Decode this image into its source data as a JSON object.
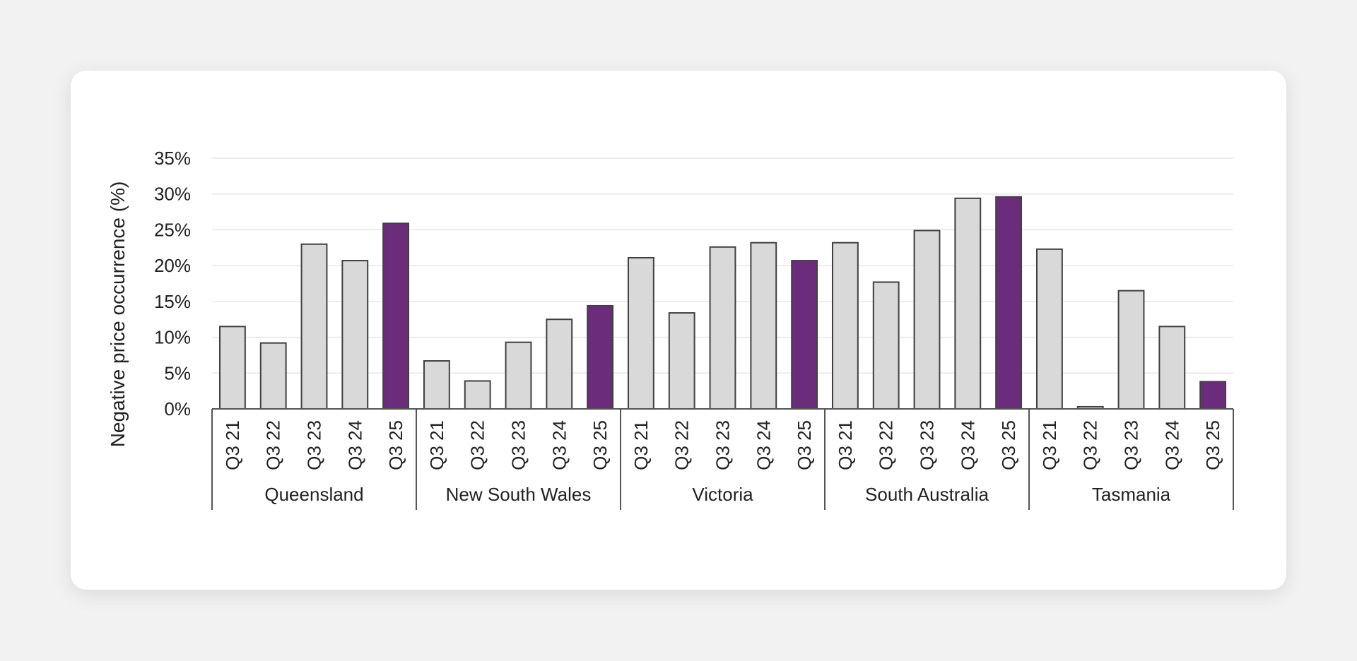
{
  "chart_data": {
    "type": "bar",
    "title": "",
    "ylabel": "Negative price occurrence (%)",
    "xlabel": "",
    "ylim": [
      0,
      35
    ],
    "yticks": [
      0,
      5,
      10,
      15,
      20,
      25,
      30,
      35
    ],
    "ytick_suffix": "%",
    "grid": true,
    "colors": {
      "highlight": "#6b2d7b",
      "default": "#d9d9d9",
      "bar_stroke": "#404040",
      "grid": "#e6e6e6",
      "axis": "#555555"
    },
    "groups": [
      {
        "name": "Queensland",
        "categories": [
          "Q3 21",
          "Q3 22",
          "Q3 23",
          "Q3 24",
          "Q3 25"
        ],
        "values": [
          11.5,
          9.2,
          23.0,
          20.7,
          25.9
        ]
      },
      {
        "name": "New South Wales",
        "categories": [
          "Q3 21",
          "Q3 22",
          "Q3 23",
          "Q3 24",
          "Q3 25"
        ],
        "values": [
          6.7,
          3.9,
          9.3,
          12.5,
          14.4
        ]
      },
      {
        "name": "Victoria",
        "categories": [
          "Q3 21",
          "Q3 22",
          "Q3 23",
          "Q3 24",
          "Q3 25"
        ],
        "values": [
          21.1,
          13.4,
          22.6,
          23.2,
          20.7
        ]
      },
      {
        "name": "South Australia",
        "categories": [
          "Q3 21",
          "Q3 22",
          "Q3 23",
          "Q3 24",
          "Q3 25"
        ],
        "values": [
          23.2,
          17.7,
          24.9,
          29.4,
          29.6
        ]
      },
      {
        "name": "Tasmania",
        "categories": [
          "Q3 21",
          "Q3 22",
          "Q3 23",
          "Q3 24",
          "Q3 25"
        ],
        "values": [
          22.3,
          0.3,
          16.5,
          11.5,
          3.8
        ]
      }
    ],
    "highlight_category": "Q3 25"
  }
}
